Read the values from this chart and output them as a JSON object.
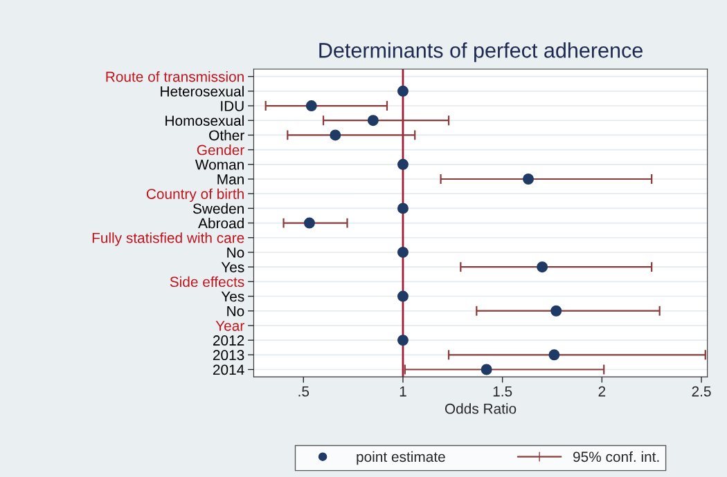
{
  "chart_data": {
    "type": "scatter",
    "orientation": "horizontal",
    "title": "Determinants of perfect adherence",
    "xlabel": "Odds Ratio",
    "categories": [
      "Route of transmission",
      "Heterosexual",
      "IDU",
      "Homosexual",
      "Other",
      "Gender",
      "Woman",
      "Man",
      "Country of birth",
      "Sweden",
      "Abroad",
      "Fully statisfied with care",
      "No",
      "Yes",
      "Side effects",
      "Yes",
      "No",
      "Year",
      "2012",
      "2013",
      "2014"
    ],
    "series": [
      {
        "name": "point estimate",
        "color": "#1f3a64",
        "marker": "circle",
        "values": [
          null,
          1,
          0.54,
          0.85,
          0.66,
          null,
          1,
          1.63,
          null,
          1,
          0.53,
          null,
          1,
          1.7,
          null,
          1,
          1.77,
          null,
          1,
          1.76,
          1.42
        ],
        "errors": [
          null,
          null,
          [
            0.31,
            0.92
          ],
          [
            0.6,
            1.23
          ],
          [
            0.42,
            1.06
          ],
          null,
          null,
          [
            1.19,
            2.25
          ],
          null,
          null,
          [
            0.4,
            0.72
          ],
          null,
          null,
          [
            1.29,
            2.25
          ],
          null,
          null,
          [
            1.37,
            2.29
          ],
          null,
          null,
          [
            1.23,
            2.52
          ],
          [
            1.01,
            2.01
          ]
        ]
      },
      {
        "name": "95% conf. int.",
        "color": "#8b3a3a",
        "marker": "none",
        "values": [
          null,
          null,
          null,
          null,
          null,
          null,
          null,
          null,
          null,
          null,
          null,
          null,
          null,
          null,
          null,
          null,
          null,
          null,
          null,
          null,
          null
        ]
      }
    ],
    "xlim": [
      0.25,
      2.53
    ],
    "xticks": [
      {
        "value": 0.5,
        "label": ".5"
      },
      1,
      1.5,
      2,
      2.5
    ],
    "ref_lines": [
      {
        "axis": "x",
        "value": 1,
        "color": "#a01c34"
      }
    ],
    "grid": "y",
    "legend": "bottom"
  }
}
